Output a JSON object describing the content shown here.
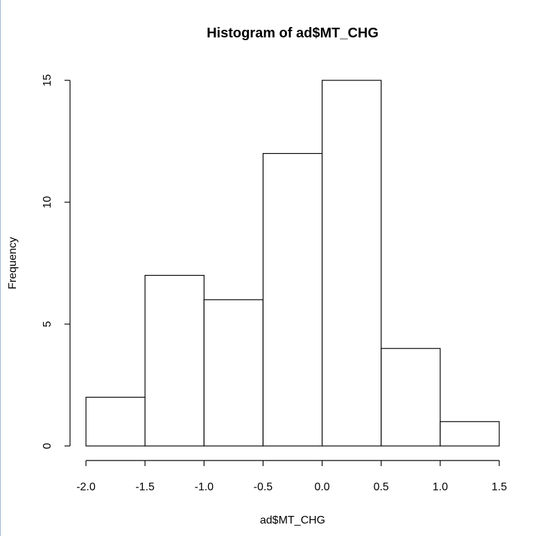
{
  "chart_data": {
    "type": "bar",
    "title": "Histogram of ad$MT_CHG",
    "xlabel": "ad$MT_CHG",
    "ylabel": "Frequency",
    "bins": [
      {
        "x0": -2.0,
        "x1": -1.5,
        "count": 2
      },
      {
        "x0": -1.5,
        "x1": -1.0,
        "count": 7
      },
      {
        "x0": -1.0,
        "x1": -0.5,
        "count": 6
      },
      {
        "x0": -0.5,
        "x1": 0.0,
        "count": 12
      },
      {
        "x0": 0.0,
        "x1": 0.5,
        "count": 15
      },
      {
        "x0": 0.5,
        "x1": 1.0,
        "count": 4
      },
      {
        "x0": 1.0,
        "x1": 1.5,
        "count": 1
      }
    ],
    "xlim": [
      -2.0,
      1.5
    ],
    "ylim": [
      0,
      15
    ],
    "x_ticks": [
      "-2.0",
      "-1.5",
      "-1.0",
      "-0.5",
      "0.0",
      "0.5",
      "1.0",
      "1.5"
    ],
    "y_ticks": [
      "0",
      "5",
      "10",
      "15"
    ],
    "grid": false,
    "bar_fill": "#ffffff",
    "bar_stroke": "#000000"
  }
}
